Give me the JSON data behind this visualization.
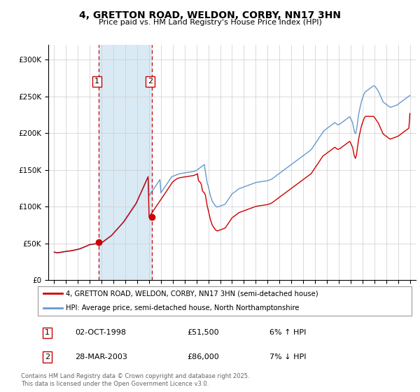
{
  "title": "4, GRETTON ROAD, WELDON, CORBY, NN17 3HN",
  "subtitle": "Price paid vs. HM Land Registry's House Price Index (HPI)",
  "legend_line1": "4, GRETTON ROAD, WELDON, CORBY, NN17 3HN (semi-detached house)",
  "legend_line2": "HPI: Average price, semi-detached house, North Northamptonshire",
  "transaction1_date": "02-OCT-1998",
  "transaction1_price": "£51,500",
  "transaction1_hpi": "6% ↑ HPI",
  "transaction1_x": 1998.75,
  "transaction1_y": 51500,
  "transaction2_date": "28-MAR-2003",
  "transaction2_price": "£86,000",
  "transaction2_hpi": "7% ↓ HPI",
  "transaction2_x": 2003.23,
  "transaction2_y": 86000,
  "red_color": "#cc0000",
  "blue_color": "#6699cc",
  "shade_color": "#daeaf5",
  "grid_color": "#cccccc",
  "background_color": "#ffffff",
  "ylim": [
    0,
    320000
  ],
  "xlim_start": 1994.5,
  "xlim_end": 2025.5,
  "footer": "Contains HM Land Registry data © Crown copyright and database right 2025.\nThis data is licensed under the Open Government Licence v3.0.",
  "hpi_years": [
    1995.0,
    1995.083,
    1995.167,
    1995.25,
    1995.333,
    1995.417,
    1995.5,
    1995.583,
    1995.667,
    1995.75,
    1995.833,
    1995.917,
    1996.0,
    1996.083,
    1996.167,
    1996.25,
    1996.333,
    1996.417,
    1996.5,
    1996.583,
    1996.667,
    1996.75,
    1996.833,
    1996.917,
    1997.0,
    1997.083,
    1997.167,
    1997.25,
    1997.333,
    1997.417,
    1997.5,
    1997.583,
    1997.667,
    1997.75,
    1997.833,
    1997.917,
    1998.0,
    1998.083,
    1998.167,
    1998.25,
    1998.333,
    1998.417,
    1998.5,
    1998.583,
    1998.667,
    1998.75,
    1998.833,
    1998.917,
    1999.0,
    1999.083,
    1999.167,
    1999.25,
    1999.333,
    1999.417,
    1999.5,
    1999.583,
    1999.667,
    1999.75,
    1999.833,
    1999.917,
    2000.0,
    2000.083,
    2000.167,
    2000.25,
    2000.333,
    2000.417,
    2000.5,
    2000.583,
    2000.667,
    2000.75,
    2000.833,
    2000.917,
    2001.0,
    2001.083,
    2001.167,
    2001.25,
    2001.333,
    2001.417,
    2001.5,
    2001.583,
    2001.667,
    2001.75,
    2001.833,
    2001.917,
    2002.0,
    2002.083,
    2002.167,
    2002.25,
    2002.333,
    2002.417,
    2002.5,
    2002.583,
    2002.667,
    2002.75,
    2002.833,
    2002.917,
    2003.0,
    2003.083,
    2003.167,
    2003.25,
    2003.333,
    2003.417,
    2003.5,
    2003.583,
    2003.667,
    2003.75,
    2003.833,
    2003.917,
    2004.0,
    2004.083,
    2004.167,
    2004.25,
    2004.333,
    2004.417,
    2004.5,
    2004.583,
    2004.667,
    2004.75,
    2004.833,
    2004.917,
    2005.0,
    2005.083,
    2005.167,
    2005.25,
    2005.333,
    2005.417,
    2005.5,
    2005.583,
    2005.667,
    2005.75,
    2005.833,
    2005.917,
    2006.0,
    2006.083,
    2006.167,
    2006.25,
    2006.333,
    2006.417,
    2006.5,
    2006.583,
    2006.667,
    2006.75,
    2006.833,
    2006.917,
    2007.0,
    2007.083,
    2007.167,
    2007.25,
    2007.333,
    2007.417,
    2007.5,
    2007.583,
    2007.667,
    2007.75,
    2007.833,
    2007.917,
    2008.0,
    2008.083,
    2008.167,
    2008.25,
    2008.333,
    2008.417,
    2008.5,
    2008.583,
    2008.667,
    2008.75,
    2008.833,
    2008.917,
    2009.0,
    2009.083,
    2009.167,
    2009.25,
    2009.333,
    2009.417,
    2009.5,
    2009.583,
    2009.667,
    2009.75,
    2009.833,
    2009.917,
    2010.0,
    2010.083,
    2010.167,
    2010.25,
    2010.333,
    2010.417,
    2010.5,
    2010.583,
    2010.667,
    2010.75,
    2010.833,
    2010.917,
    2011.0,
    2011.083,
    2011.167,
    2011.25,
    2011.333,
    2011.417,
    2011.5,
    2011.583,
    2011.667,
    2011.75,
    2011.833,
    2011.917,
    2012.0,
    2012.083,
    2012.167,
    2012.25,
    2012.333,
    2012.417,
    2012.5,
    2012.583,
    2012.667,
    2012.75,
    2012.833,
    2012.917,
    2013.0,
    2013.083,
    2013.167,
    2013.25,
    2013.333,
    2013.417,
    2013.5,
    2013.583,
    2013.667,
    2013.75,
    2013.833,
    2013.917,
    2014.0,
    2014.083,
    2014.167,
    2014.25,
    2014.333,
    2014.417,
    2014.5,
    2014.583,
    2014.667,
    2014.75,
    2014.833,
    2014.917,
    2015.0,
    2015.083,
    2015.167,
    2015.25,
    2015.333,
    2015.417,
    2015.5,
    2015.583,
    2015.667,
    2015.75,
    2015.833,
    2015.917,
    2016.0,
    2016.083,
    2016.167,
    2016.25,
    2016.333,
    2016.417,
    2016.5,
    2016.583,
    2016.667,
    2016.75,
    2016.833,
    2016.917,
    2017.0,
    2017.083,
    2017.167,
    2017.25,
    2017.333,
    2017.417,
    2017.5,
    2017.583,
    2017.667,
    2017.75,
    2017.833,
    2017.917,
    2018.0,
    2018.083,
    2018.167,
    2018.25,
    2018.333,
    2018.417,
    2018.5,
    2018.583,
    2018.667,
    2018.75,
    2018.833,
    2018.917,
    2019.0,
    2019.083,
    2019.167,
    2019.25,
    2019.333,
    2019.417,
    2019.5,
    2019.583,
    2019.667,
    2019.75,
    2019.833,
    2019.917,
    2020.0,
    2020.083,
    2020.167,
    2020.25,
    2020.333,
    2020.417,
    2020.5,
    2020.583,
    2020.667,
    2020.75,
    2020.833,
    2020.917,
    2021.0,
    2021.083,
    2021.167,
    2021.25,
    2021.333,
    2021.417,
    2021.5,
    2021.583,
    2021.667,
    2021.75,
    2021.833,
    2021.917,
    2022.0,
    2022.083,
    2022.167,
    2022.25,
    2022.333,
    2022.417,
    2022.5,
    2022.583,
    2022.667,
    2022.75,
    2022.833,
    2022.917,
    2023.0,
    2023.083,
    2023.167,
    2023.25,
    2023.333,
    2023.417,
    2023.5,
    2023.583,
    2023.667,
    2023.75,
    2023.833,
    2023.917,
    2024.0,
    2024.083,
    2024.167,
    2024.25,
    2024.333,
    2024.417,
    2024.5,
    2024.583,
    2024.667,
    2024.75,
    2024.833,
    2024.917,
    2025.0
  ],
  "hpi_vals": [
    38000,
    37600,
    37300,
    37100,
    37200,
    37400,
    37600,
    37800,
    38000,
    38200,
    38400,
    38700,
    39000,
    39100,
    39200,
    39400,
    39600,
    39800,
    40100,
    40300,
    40600,
    40900,
    41100,
    41400,
    41700,
    42100,
    42500,
    43100,
    43600,
    44100,
    44700,
    45300,
    45900,
    46500,
    47100,
    47600,
    48100,
    48300,
    48500,
    48700,
    48900,
    49100,
    49300,
    49500,
    49700,
    49800,
    50100,
    50400,
    50800,
    51600,
    52600,
    53600,
    54600,
    55600,
    56600,
    57600,
    58600,
    59600,
    60600,
    62100,
    63600,
    65100,
    66600,
    68100,
    69600,
    71100,
    72600,
    74100,
    75600,
    77100,
    78600,
    80100,
    82100,
    84100,
    86100,
    88100,
    90100,
    92100,
    94100,
    96100,
    98100,
    100100,
    102100,
    104100,
    107100,
    110100,
    113100,
    116100,
    119100,
    122100,
    125100,
    128100,
    131100,
    134100,
    137100,
    140100,
    115000,
    117000,
    119000,
    121000,
    123000,
    125000,
    127000,
    129000,
    131000,
    133000,
    135000,
    137000,
    119000,
    121000,
    123000,
    125000,
    127000,
    129000,
    131000,
    133000,
    135000,
    137000,
    139000,
    141000,
    141500,
    142000,
    142500,
    143000,
    143500,
    144000,
    144500,
    145000,
    145300,
    145500,
    145700,
    145900,
    146100,
    146300,
    146500,
    146700,
    146900,
    147100,
    147300,
    147500,
    147700,
    148000,
    148500,
    149000,
    149500,
    150500,
    151500,
    152500,
    153500,
    154500,
    155500,
    156500,
    157500,
    147500,
    139500,
    131500,
    127500,
    121500,
    115500,
    111500,
    107500,
    105500,
    103500,
    101500,
    100500,
    99500,
    100000,
    100500,
    101000,
    101500,
    102000,
    102500,
    103000,
    103500,
    105500,
    107500,
    109500,
    111500,
    113500,
    115500,
    117500,
    118500,
    119500,
    120500,
    121500,
    122500,
    123500,
    124500,
    125000,
    125500,
    126000,
    126500,
    127000,
    127500,
    128000,
    128500,
    129000,
    129500,
    130000,
    130500,
    131000,
    131500,
    132000,
    132500,
    133000,
    133300,
    133500,
    133700,
    133900,
    134100,
    134300,
    134500,
    134700,
    134900,
    135100,
    135300,
    135500,
    136000,
    136500,
    137000,
    137500,
    138500,
    139500,
    140500,
    141500,
    142500,
    143500,
    144500,
    145500,
    146500,
    147500,
    148500,
    149500,
    150500,
    151500,
    152500,
    153500,
    154500,
    155500,
    156500,
    157500,
    158500,
    159500,
    160500,
    161500,
    162500,
    163500,
    164500,
    165500,
    166500,
    167500,
    168500,
    169500,
    170500,
    171500,
    172500,
    173500,
    174500,
    175500,
    176500,
    177500,
    179500,
    181500,
    183500,
    185500,
    187500,
    189500,
    191500,
    193500,
    195500,
    197500,
    199500,
    201500,
    203500,
    204500,
    205500,
    206500,
    207500,
    208500,
    209500,
    210500,
    211500,
    212500,
    213500,
    214500,
    213500,
    212500,
    211500,
    212000,
    212500,
    213500,
    214500,
    215500,
    216500,
    217500,
    218500,
    219500,
    220500,
    221500,
    222500,
    220500,
    217500,
    214500,
    207500,
    201500,
    199500,
    204500,
    214500,
    224500,
    231500,
    237500,
    243500,
    247500,
    251500,
    254500,
    256500,
    257500,
    258500,
    259500,
    260500,
    261500,
    262500,
    263500,
    264500,
    264500,
    263500,
    261500,
    259500,
    257500,
    254500,
    251500,
    248500,
    245500,
    242500,
    241500,
    240500,
    239500,
    238500,
    237500,
    236500,
    235500,
    235500,
    236000,
    236500,
    237000,
    237500,
    238000,
    238500,
    239500,
    240500,
    241500,
    242500,
    243500,
    244500,
    245500,
    246500,
    247500,
    248500,
    249500,
    250500,
    251500
  ],
  "red_years": [
    1995.0,
    1995.083,
    1995.167,
    1995.25,
    1995.333,
    1995.417,
    1995.5,
    1995.583,
    1995.667,
    1995.75,
    1995.833,
    1995.917,
    1996.0,
    1996.083,
    1996.167,
    1996.25,
    1996.333,
    1996.417,
    1996.5,
    1996.583,
    1996.667,
    1996.75,
    1996.833,
    1996.917,
    1997.0,
    1997.083,
    1997.167,
    1997.25,
    1997.333,
    1997.417,
    1997.5,
    1997.583,
    1997.667,
    1997.75,
    1997.833,
    1997.917,
    1998.0,
    1998.083,
    1998.167,
    1998.25,
    1998.333,
    1998.417,
    1998.5,
    1998.583,
    1998.667,
    1998.75,
    1998.833,
    1998.917,
    1999.0,
    1999.083,
    1999.167,
    1999.25,
    1999.333,
    1999.417,
    1999.5,
    1999.583,
    1999.667,
    1999.75,
    1999.833,
    1999.917,
    2000.0,
    2000.083,
    2000.167,
    2000.25,
    2000.333,
    2000.417,
    2000.5,
    2000.583,
    2000.667,
    2000.75,
    2000.833,
    2000.917,
    2001.0,
    2001.083,
    2001.167,
    2001.25,
    2001.333,
    2001.417,
    2001.5,
    2001.583,
    2001.667,
    2001.75,
    2001.833,
    2001.917,
    2002.0,
    2002.083,
    2002.167,
    2002.25,
    2002.333,
    2002.417,
    2002.5,
    2002.583,
    2002.667,
    2002.75,
    2002.833,
    2002.917,
    2003.0,
    2003.083,
    2003.167,
    2003.25,
    2003.333,
    2003.417,
    2003.5,
    2003.583,
    2003.667,
    2003.75,
    2003.833,
    2003.917,
    2004.0,
    2004.083,
    2004.167,
    2004.25,
    2004.333,
    2004.417,
    2004.5,
    2004.583,
    2004.667,
    2004.75,
    2004.833,
    2004.917,
    2005.0,
    2005.083,
    2005.167,
    2005.25,
    2005.333,
    2005.417,
    2005.5,
    2005.583,
    2005.667,
    2005.75,
    2005.833,
    2005.917,
    2006.0,
    2006.083,
    2006.167,
    2006.25,
    2006.333,
    2006.417,
    2006.5,
    2006.583,
    2006.667,
    2006.75,
    2006.833,
    2006.917,
    2007.0,
    2007.083,
    2007.167,
    2007.25,
    2007.333,
    2007.417,
    2007.5,
    2007.583,
    2007.667,
    2007.75,
    2007.833,
    2007.917,
    2008.0,
    2008.083,
    2008.167,
    2008.25,
    2008.333,
    2008.417,
    2008.5,
    2008.583,
    2008.667,
    2008.75,
    2008.833,
    2008.917,
    2009.0,
    2009.083,
    2009.167,
    2009.25,
    2009.333,
    2009.417,
    2009.5,
    2009.583,
    2009.667,
    2009.75,
    2009.833,
    2009.917,
    2010.0,
    2010.083,
    2010.167,
    2010.25,
    2010.333,
    2010.417,
    2010.5,
    2010.583,
    2010.667,
    2010.75,
    2010.833,
    2010.917,
    2011.0,
    2011.083,
    2011.167,
    2011.25,
    2011.333,
    2011.417,
    2011.5,
    2011.583,
    2011.667,
    2011.75,
    2011.833,
    2011.917,
    2012.0,
    2012.083,
    2012.167,
    2012.25,
    2012.333,
    2012.417,
    2012.5,
    2012.583,
    2012.667,
    2012.75,
    2012.833,
    2012.917,
    2013.0,
    2013.083,
    2013.167,
    2013.25,
    2013.333,
    2013.417,
    2013.5,
    2013.583,
    2013.667,
    2013.75,
    2013.833,
    2013.917,
    2014.0,
    2014.083,
    2014.167,
    2014.25,
    2014.333,
    2014.417,
    2014.5,
    2014.583,
    2014.667,
    2014.75,
    2014.833,
    2014.917,
    2015.0,
    2015.083,
    2015.167,
    2015.25,
    2015.333,
    2015.417,
    2015.5,
    2015.583,
    2015.667,
    2015.75,
    2015.833,
    2015.917,
    2016.0,
    2016.083,
    2016.167,
    2016.25,
    2016.333,
    2016.417,
    2016.5,
    2016.583,
    2016.667,
    2016.75,
    2016.833,
    2016.917,
    2017.0,
    2017.083,
    2017.167,
    2017.25,
    2017.333,
    2017.417,
    2017.5,
    2017.583,
    2017.667,
    2017.75,
    2017.833,
    2017.917,
    2018.0,
    2018.083,
    2018.167,
    2018.25,
    2018.333,
    2018.417,
    2018.5,
    2018.583,
    2018.667,
    2018.75,
    2018.833,
    2018.917,
    2019.0,
    2019.083,
    2019.167,
    2019.25,
    2019.333,
    2019.417,
    2019.5,
    2019.583,
    2019.667,
    2019.75,
    2019.833,
    2019.917,
    2020.0,
    2020.083,
    2020.167,
    2020.25,
    2020.333,
    2020.417,
    2020.5,
    2020.583,
    2020.667,
    2020.75,
    2020.833,
    2020.917,
    2021.0,
    2021.083,
    2021.167,
    2021.25,
    2021.333,
    2021.417,
    2021.5,
    2021.583,
    2021.667,
    2021.75,
    2021.833,
    2021.917,
    2022.0,
    2022.083,
    2022.167,
    2022.25,
    2022.333,
    2022.417,
    2022.5,
    2022.583,
    2022.667,
    2022.75,
    2022.833,
    2022.917,
    2023.0,
    2023.083,
    2023.167,
    2023.25,
    2023.333,
    2023.417,
    2023.5,
    2023.583,
    2023.667,
    2023.75,
    2023.833,
    2023.917,
    2024.0,
    2024.083,
    2024.167,
    2024.25,
    2024.333,
    2024.417,
    2024.5,
    2024.583,
    2024.667,
    2024.75,
    2024.833,
    2024.917,
    2025.0
  ],
  "red_vals": [
    38500,
    38100,
    37800,
    37600,
    37700,
    37900,
    38100,
    38300,
    38500,
    38700,
    38900,
    39200,
    39500,
    39600,
    39700,
    39900,
    40100,
    40300,
    40600,
    40800,
    41100,
    41400,
    41600,
    41900,
    42200,
    42600,
    43000,
    43600,
    44100,
    44600,
    45200,
    45800,
    46400,
    47000,
    47600,
    48100,
    48600,
    48800,
    49000,
    49200,
    49400,
    49600,
    49800,
    50000,
    50200,
    51500,
    50600,
    50900,
    51300,
    52100,
    53100,
    54100,
    55100,
    56100,
    57100,
    58100,
    59100,
    60100,
    61100,
    62600,
    64100,
    65600,
    67100,
    68600,
    70100,
    71600,
    73100,
    74600,
    76100,
    77600,
    79100,
    81100,
    83100,
    85100,
    87100,
    89100,
    91100,
    93100,
    95100,
    97100,
    99100,
    101100,
    103100,
    105100,
    108100,
    111100,
    114100,
    117100,
    120100,
    123100,
    126100,
    129100,
    132100,
    135100,
    138100,
    141100,
    86000,
    88000,
    90000,
    92000,
    94000,
    96000,
    98000,
    100000,
    102000,
    104000,
    106000,
    108000,
    110000,
    112000,
    114000,
    116000,
    118000,
    120000,
    122000,
    124000,
    126000,
    128000,
    130000,
    132000,
    134000,
    135000,
    136000,
    137000,
    138000,
    138500,
    139000,
    139500,
    139800,
    140000,
    140200,
    140400,
    140600,
    140800,
    141000,
    141200,
    141400,
    141600,
    141800,
    142000,
    142200,
    142500,
    143000,
    143500,
    144000,
    145000,
    136000,
    134000,
    133000,
    130000,
    122000,
    120000,
    119000,
    116000,
    108000,
    100000,
    95000,
    89000,
    83000,
    79000,
    75000,
    73000,
    71000,
    69000,
    68000,
    67000,
    67500,
    68000,
    68500,
    69000,
    69500,
    70000,
    70500,
    71000,
    73000,
    75000,
    77000,
    79000,
    81000,
    83000,
    85000,
    86000,
    87000,
    88000,
    89000,
    90000,
    91000,
    92000,
    92500,
    93000,
    93500,
    94000,
    94500,
    95000,
    95500,
    96000,
    96500,
    97000,
    97500,
    98000,
    98500,
    99000,
    99500,
    100000,
    100500,
    100800,
    101000,
    101200,
    101400,
    101600,
    101800,
    102000,
    102200,
    102400,
    102600,
    102800,
    103000,
    103500,
    104000,
    104500,
    105000,
    106000,
    107000,
    108000,
    109000,
    110000,
    111000,
    112000,
    113000,
    114000,
    115000,
    116000,
    117000,
    118000,
    119000,
    120000,
    121000,
    122000,
    123000,
    124000,
    125000,
    126000,
    127000,
    128000,
    129000,
    130000,
    131000,
    132000,
    133000,
    134000,
    135000,
    136000,
    137000,
    138000,
    139000,
    140000,
    141000,
    142000,
    143000,
    144000,
    145000,
    147000,
    149000,
    151000,
    153000,
    155000,
    157000,
    159000,
    161000,
    163000,
    165000,
    167000,
    169000,
    170000,
    171000,
    172000,
    173000,
    174000,
    175000,
    176000,
    177000,
    178000,
    179000,
    180000,
    181000,
    180000,
    179000,
    178000,
    178500,
    179000,
    180000,
    181000,
    182000,
    183000,
    184000,
    185000,
    186000,
    187000,
    188000,
    189000,
    187000,
    184000,
    181000,
    174000,
    168000,
    166000,
    171000,
    181000,
    191000,
    198000,
    204000,
    210000,
    214000,
    218000,
    221000,
    223000,
    223000,
    223000,
    223000,
    223000,
    223000,
    223000,
    223000,
    223000,
    222000,
    220000,
    218000,
    216000,
    214000,
    211000,
    208000,
    205000,
    202000,
    199000,
    198000,
    197000,
    196000,
    195000,
    194000,
    193000,
    192000,
    192500,
    193000,
    193500,
    194000,
    194500,
    195000,
    195500,
    196000,
    197000,
    198000,
    199000,
    200000,
    201000,
    202000,
    203000,
    204000,
    205000,
    206000,
    207000,
    227000
  ]
}
